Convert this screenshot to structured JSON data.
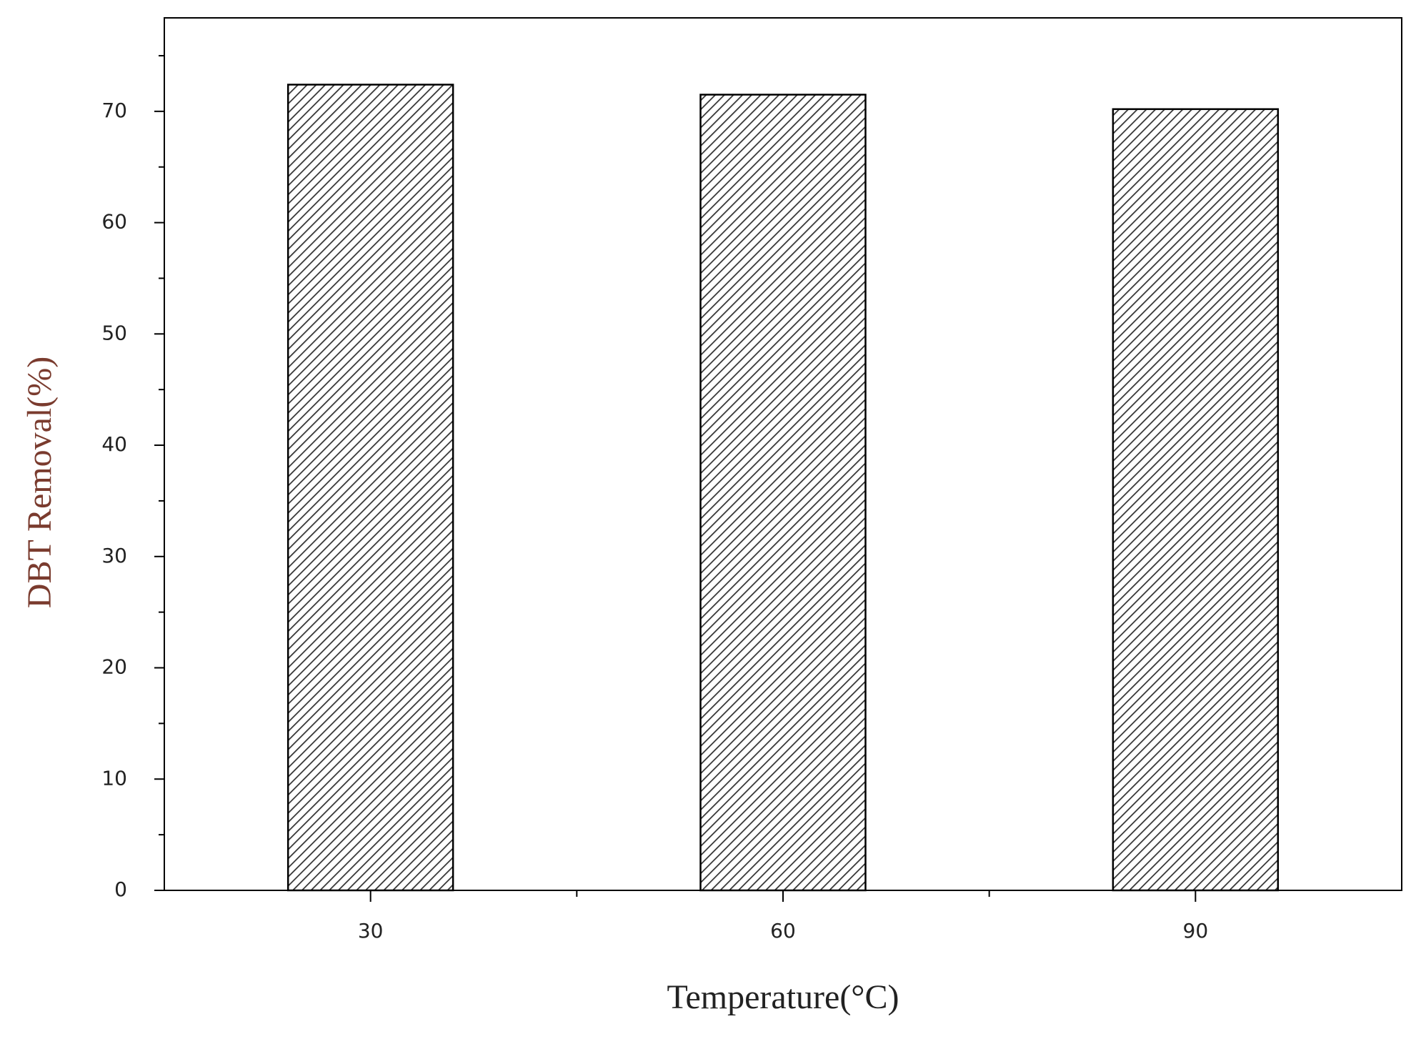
{
  "chart_data": {
    "type": "bar",
    "xlabel": "Temperature(°C)",
    "ylabel": "DBT Removal(%)",
    "categories": [
      "30",
      "60",
      "90"
    ],
    "values": [
      72.4,
      71.5,
      70.2
    ],
    "color": "#333333",
    "ylim": [
      0,
      78.4
    ],
    "yticks": [
      0,
      10,
      20,
      30,
      40,
      50,
      60,
      70
    ],
    "yminorticks": [
      5,
      15,
      25,
      35,
      45,
      55,
      65,
      75
    ],
    "grid": false
  }
}
